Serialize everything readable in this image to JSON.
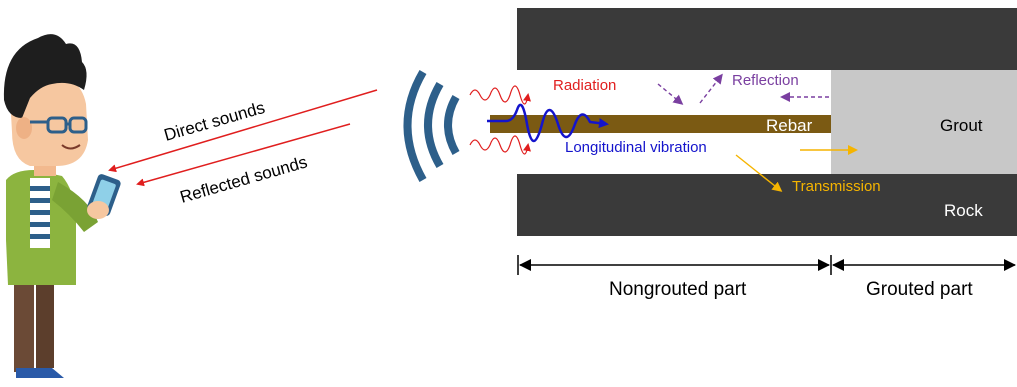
{
  "labels": {
    "direct_sounds": "Direct sounds",
    "reflected_sounds": "Reflected sounds",
    "radiation": "Radiation",
    "reflection": "Reflection",
    "rebar": "Rebar",
    "grout": "Grout",
    "longitudinal_vibration": "Longitudinal vibration",
    "transmission": "Transmission",
    "rock": "Rock",
    "nongrouted_part": "Nongrouted part",
    "grouted_part": "Grouted part"
  },
  "colors": {
    "rock": "#3a3a3a",
    "grout": "#c8c8c8",
    "rebar": "#7b5a13",
    "radiation": "#e01e1e",
    "reflection": "#7a3fa0",
    "longitudinal": "#1414cc",
    "transmission": "#f5b400",
    "sound_waves": "#2d5f8a",
    "sound_lines": "#e01e1e"
  },
  "icons": [
    "person-with-phone-illustration",
    "sound-wave-icon"
  ]
}
